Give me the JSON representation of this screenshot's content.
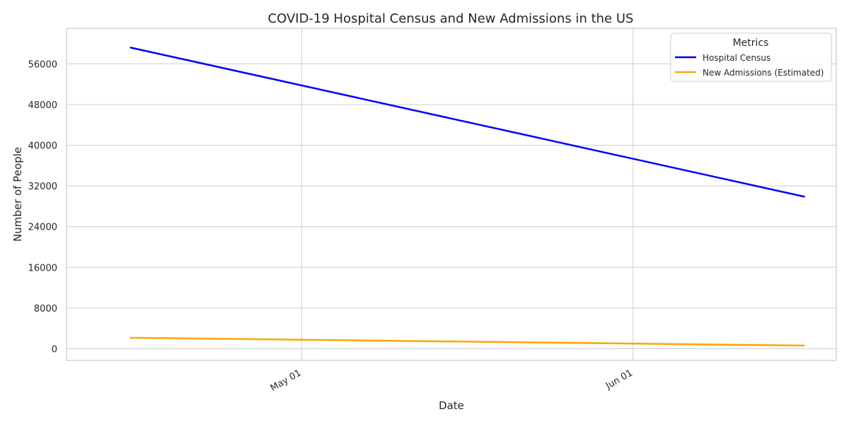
{
  "chart_data": {
    "type": "line",
    "title": "COVID-19 Hospital Census and New Admissions in the US",
    "xlabel": "Date",
    "ylabel": "Number of People",
    "x": [
      "2020-04-15",
      "2020-06-17"
    ],
    "x_ticks": [
      {
        "date": "2020-05-01",
        "label": "May 01"
      },
      {
        "date": "2020-06-01",
        "label": "Jun 01"
      }
    ],
    "xlim": [
      "2020-04-09",
      "2020-06-20"
    ],
    "ylim": [
      -2300,
      63000
    ],
    "y_ticks": [
      0,
      8000,
      16000,
      24000,
      32000,
      40000,
      48000,
      56000
    ],
    "grid": true,
    "legend": {
      "title": "Metrics",
      "placement": "top-right"
    },
    "series": [
      {
        "name": "Hospital Census",
        "color": "#0000ff",
        "values": [
          59200,
          29900
        ]
      },
      {
        "name": "New Admissions (Estimated)",
        "color": "#ffa500",
        "values": [
          2150,
          620
        ]
      }
    ]
  }
}
